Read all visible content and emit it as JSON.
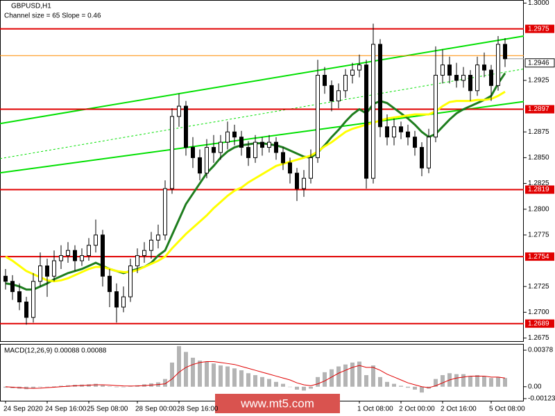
{
  "chart_data": {
    "type": "candlestick",
    "title": "GBPUSD,H1",
    "subtitle": "Channel size = 65 Slope = 0.46",
    "candles": [
      [
        1.2735,
        1.2742,
        1.2722,
        1.273
      ],
      [
        1.273,
        1.2736,
        1.2712,
        1.272
      ],
      [
        1.272,
        1.2728,
        1.2702,
        1.271
      ],
      [
        1.271,
        1.2715,
        1.2688,
        1.2695
      ],
      [
        1.2695,
        1.2738,
        1.269,
        1.273
      ],
      [
        1.273,
        1.2758,
        1.2725,
        1.2745
      ],
      [
        1.2745,
        1.2752,
        1.2715,
        1.2735
      ],
      [
        1.2735,
        1.276,
        1.273,
        1.275
      ],
      [
        1.275,
        1.2765,
        1.2742,
        1.2755
      ],
      [
        1.2755,
        1.2768,
        1.2748,
        1.276
      ],
      [
        1.276,
        1.2765,
        1.274,
        1.275
      ],
      [
        1.275,
        1.2762,
        1.2745,
        1.2755
      ],
      [
        1.2755,
        1.2772,
        1.275,
        1.2765
      ],
      [
        1.2765,
        1.279,
        1.2758,
        1.2775
      ],
      [
        1.2775,
        1.278,
        1.2725,
        1.2735
      ],
      [
        1.2735,
        1.2742,
        1.2705,
        1.272
      ],
      [
        1.272,
        1.2728,
        1.269,
        1.2705
      ],
      [
        1.2705,
        1.2725,
        1.27,
        1.2715
      ],
      [
        1.2715,
        1.2752,
        1.271,
        1.2745
      ],
      [
        1.2745,
        1.2762,
        1.2738,
        1.2755
      ],
      [
        1.2755,
        1.2768,
        1.2748,
        1.276
      ],
      [
        1.276,
        1.2778,
        1.2752,
        1.277
      ],
      [
        1.277,
        1.2785,
        1.2762,
        1.2775
      ],
      [
        1.2775,
        1.2828,
        1.277,
        1.282
      ],
      [
        1.282,
        1.2898,
        1.2815,
        1.289
      ],
      [
        1.289,
        1.2912,
        1.288,
        1.29
      ],
      [
        1.29,
        1.2905,
        1.2852,
        1.286
      ],
      [
        1.286,
        1.287,
        1.284,
        1.285
      ],
      [
        1.285,
        1.2858,
        1.2828,
        1.2835
      ],
      [
        1.2835,
        1.2868,
        1.283,
        1.286
      ],
      [
        1.286,
        1.2872,
        1.2845,
        1.2855
      ],
      [
        1.2855,
        1.2872,
        1.2848,
        1.2865
      ],
      [
        1.2865,
        1.2885,
        1.2858,
        1.2875
      ],
      [
        1.2875,
        1.2882,
        1.2862,
        1.287
      ],
      [
        1.287,
        1.2876,
        1.2852,
        1.286
      ],
      [
        1.286,
        1.2866,
        1.2842,
        1.285
      ],
      [
        1.285,
        1.2872,
        1.2845,
        1.2865
      ],
      [
        1.2865,
        1.287,
        1.2852,
        1.286
      ],
      [
        1.286,
        1.2872,
        1.2855,
        1.2865
      ],
      [
        1.2865,
        1.287,
        1.2848,
        1.2855
      ],
      [
        1.2855,
        1.286,
        1.2838,
        1.2845
      ],
      [
        1.2845,
        1.285,
        1.2825,
        1.2835
      ],
      [
        1.2835,
        1.284,
        1.2808,
        1.282
      ],
      [
        1.282,
        1.2838,
        1.2812,
        1.283
      ],
      [
        1.283,
        1.2858,
        1.2825,
        1.285
      ],
      [
        1.285,
        1.2945,
        1.2845,
        1.293
      ],
      [
        1.293,
        1.2938,
        1.2912,
        1.292
      ],
      [
        1.292,
        1.2925,
        1.2895,
        1.2905
      ],
      [
        1.2905,
        1.2922,
        1.2898,
        1.2915
      ],
      [
        1.2915,
        1.2936,
        1.2908,
        1.293
      ],
      [
        1.293,
        1.2942,
        1.2922,
        1.2935
      ],
      [
        1.2935,
        1.295,
        1.2928,
        1.294
      ],
      [
        1.294,
        1.2945,
        1.282,
        1.283
      ],
      [
        1.283,
        1.298,
        1.2825,
        1.296
      ],
      [
        1.296,
        1.2965,
        1.287,
        1.288
      ],
      [
        1.288,
        1.2892,
        1.2862,
        1.287
      ],
      [
        1.287,
        1.2888,
        1.2862,
        1.288
      ],
      [
        1.288,
        1.2885,
        1.2868,
        1.2875
      ],
      [
        1.2875,
        1.2882,
        1.2862,
        1.287
      ],
      [
        1.287,
        1.2876,
        1.2852,
        1.286
      ],
      [
        1.286,
        1.2865,
        1.2832,
        1.284
      ],
      [
        1.284,
        1.2878,
        1.2835,
        1.287
      ],
      [
        1.287,
        1.2958,
        1.2865,
        1.293
      ],
      [
        1.293,
        1.2955,
        1.2922,
        1.294
      ],
      [
        1.294,
        1.2948,
        1.2922,
        1.293
      ],
      [
        1.293,
        1.2942,
        1.2918,
        1.2925
      ],
      [
        1.2925,
        1.2938,
        1.2918,
        1.293
      ],
      [
        1.293,
        1.2935,
        1.2905,
        1.2915
      ],
      [
        1.2915,
        1.2948,
        1.291,
        1.294
      ],
      [
        1.294,
        1.2952,
        1.2928,
        1.2935
      ],
      [
        1.2935,
        1.294,
        1.2905,
        1.292
      ],
      [
        1.292,
        1.2968,
        1.2915,
        1.296
      ],
      [
        1.296,
        1.2966,
        1.2938,
        1.2946
      ]
    ],
    "series": [
      {
        "color": "#1e7d1e",
        "values": [
          1.2728,
          1.2727,
          1.2725,
          1.2722,
          1.2722,
          1.2725,
          1.2728,
          1.2732,
          1.2735,
          1.2738,
          1.274,
          1.2742,
          1.2745,
          1.2748,
          1.2745,
          1.2742,
          1.274,
          1.2738,
          1.274,
          1.2742,
          1.2744,
          1.2748,
          1.2755,
          1.276,
          1.2775,
          1.279,
          1.2805,
          1.2815,
          1.2825,
          1.2835,
          1.2842,
          1.285,
          1.2856,
          1.286,
          1.2862,
          1.2863,
          1.2864,
          1.2864,
          1.2863,
          1.2862,
          1.286,
          1.2857,
          1.2854,
          1.2851,
          1.285,
          1.2855,
          1.2862,
          1.287,
          1.2877,
          1.2885,
          1.2892,
          1.2897,
          1.2893,
          1.2902,
          1.2905,
          1.2903,
          1.2898,
          1.2893,
          1.2888,
          1.2882,
          1.2875,
          1.287,
          1.2873,
          1.288,
          1.2887,
          1.2893,
          1.2897,
          1.29,
          1.2903,
          1.2906,
          1.291,
          1.2922,
          1.2932
        ]
      },
      {
        "color": "#ffff00",
        "values": [
          1.2754,
          1.275,
          1.2745,
          1.274,
          1.2737,
          1.2734,
          1.2731,
          1.273,
          1.2731,
          1.2733,
          1.2736,
          1.2739,
          1.2742,
          1.2744,
          1.2744,
          1.2742,
          1.274,
          1.2739,
          1.2739,
          1.2741,
          1.2744,
          1.2747,
          1.275,
          1.2754,
          1.2762,
          1.2769,
          1.2776,
          1.2782,
          1.2788,
          1.2794,
          1.2801,
          1.2807,
          1.2813,
          1.2818,
          1.2821,
          1.2826,
          1.283,
          1.2834,
          1.2838,
          1.2842,
          1.2844,
          1.2846,
          1.2848,
          1.285,
          1.2852,
          1.2856,
          1.2861,
          1.2865,
          1.287,
          1.2875,
          1.2878,
          1.288,
          1.2882,
          1.2884,
          1.2886,
          1.2888,
          1.2889,
          1.289,
          1.2891,
          1.2892,
          1.2892,
          1.2892,
          1.2895,
          1.29,
          1.2904,
          1.2905,
          1.2905,
          1.2905,
          1.2906,
          1.2906,
          1.2907,
          1.291,
          1.2914
        ]
      }
    ],
    "channel": {
      "color": "#00e000",
      "upper": [
        1.2884,
        1.2965
      ],
      "middle": [
        1.285,
        1.2933
      ],
      "lower": [
        1.2836,
        1.2902
      ]
    },
    "levels": [
      1.2975,
      1.2897,
      1.2819,
      1.2754,
      1.2689
    ],
    "level_color": "#e00000",
    "bid_line": 1.2949,
    "bid_color": "#ff8c00",
    "current_price": 1.2946,
    "ylim": [
      1.2672,
      1.3003
    ],
    "yticks": [
      {
        "value": 1.3,
        "label": "1.3000"
      },
      1.2925,
      1.2875,
      {
        "value": 1.285,
        "label": "1.2850"
      },
      1.2825,
      {
        "value": 1.28,
        "label": "1.2800"
      },
      1.2775,
      1.2725,
      {
        "value": 1.27,
        "label": "1.2700"
      },
      1.2675
    ],
    "xticks": [
      {
        "value": 0,
        "label": "24 Sep 2020"
      },
      {
        "value": 6,
        "label": "24 Sep 16:00"
      },
      {
        "value": 12,
        "label": "25 Sep 08:00"
      },
      {
        "value": 19,
        "label": "28 Sep 00:00"
      },
      {
        "value": 25,
        "label": "28 Sep 16:00"
      },
      {
        "value": 51,
        "label": "1 Oct 08:00"
      },
      {
        "value": 57,
        "label": "2 Oct 00:00"
      },
      {
        "value": 63,
        "label": "2 Oct 16:00"
      },
      {
        "value": 70,
        "label": "5 Oct 08:00"
      }
    ],
    "macd": {
      "title": "MACD(12,26,9) 0.00088 0.00088",
      "histogram": [
        -0.0001,
        -0.00015,
        -0.0002,
        -0.00025,
        -0.00015,
        -5e-05,
        0,
        5e-05,
        0.0001,
        0.00015,
        0.0002,
        0.00022,
        0.00025,
        0.0003,
        0.00015,
        5e-05,
        -5e-05,
        -5e-05,
        5e-05,
        0.00015,
        0.00025,
        0.00035,
        0.00045,
        0.0008,
        0.0025,
        0.0042,
        0.0036,
        0.003,
        0.0027,
        0.0026,
        0.0024,
        0.0022,
        0.0021,
        0.0019,
        0.0017,
        0.0014,
        0.0012,
        0.001,
        0.0008,
        0.0005,
        0.0003,
        0,
        -0.0003,
        -0.0004,
        -0.0002,
        0.001,
        0.0015,
        0.0018,
        0.0021,
        0.0023,
        0.0025,
        0.0026,
        0.0012,
        0.0022,
        0.001,
        0.0005,
        0.0003,
        0.0001,
        -0.0001,
        -0.0003,
        -0.0006,
        -0.0002,
        0.0008,
        0.0012,
        0.0014,
        0.0013,
        0.0013,
        0.0011,
        0.0012,
        0.0011,
        0.0009,
        0.001,
        0.0009
      ],
      "signal": [
        0,
        -5e-05,
        -0.0001,
        -0.00015,
        -0.00017,
        -0.00015,
        -0.0001,
        -5e-05,
        0,
        5e-05,
        0.0001,
        0.00013,
        0.00016,
        0.0002,
        0.0002,
        0.00017,
        0.00012,
        8e-05,
        7e-05,
        8e-05,
        0.00012,
        0.00017,
        0.00023,
        0.0003,
        0.0008,
        0.0015,
        0.002,
        0.0023,
        0.0025,
        0.0026,
        0.0026,
        0.0025,
        0.0024,
        0.0023,
        0.0021,
        0.0019,
        0.0017,
        0.0015,
        0.0013,
        0.0011,
        0.0009,
        0.0007,
        0.0004,
        0.0002,
        0.0001,
        0.0003,
        0.0006,
        0.001,
        0.0014,
        0.0017,
        0.002,
        0.0022,
        0.002,
        0.002,
        0.0017,
        0.0013,
        0.001,
        0.0007,
        0.0004,
        0.0002,
        0,
        -0.0001,
        0.0001,
        0.0004,
        0.0007,
        0.0009,
        0.001,
        0.0011,
        0.0011,
        0.0011,
        0.001,
        0.001,
        0.0009
      ],
      "histogram_color": "#b4b4b4",
      "signal_color": "#e00000",
      "ylim": [
        -0.00145,
        0.00443
      ],
      "yticks": [
        0.00378,
        {
          "value": 0,
          "label": "0.00"
        },
        -0.00123
      ]
    },
    "watermark": "www.mt5.com"
  }
}
